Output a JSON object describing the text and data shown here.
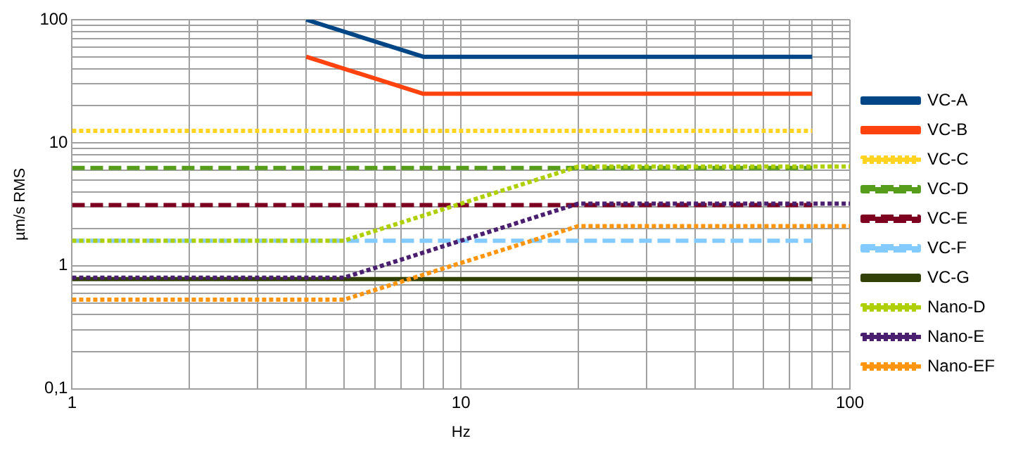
{
  "chart_data": {
    "type": "line",
    "xlabel": "Hz",
    "ylabel": "µm/s RMS",
    "log": "xy",
    "grid": true,
    "legend": "right",
    "marker": "none",
    "xlim": [
      1,
      100
    ],
    "ylim": [
      0.1,
      100
    ],
    "xticks": [
      1,
      {
        "value": 2,
        "label": null
      },
      {
        "value": 3,
        "label": null
      },
      {
        "value": 4,
        "label": null
      },
      {
        "value": 5,
        "label": null
      },
      {
        "value": 6,
        "label": null
      },
      {
        "value": 7,
        "label": null
      },
      {
        "value": 8,
        "label": null
      },
      {
        "value": 9,
        "label": null
      },
      10,
      {
        "value": 20,
        "label": null
      },
      {
        "value": 30,
        "label": null
      },
      {
        "value": 40,
        "label": null
      },
      {
        "value": 50,
        "label": null
      },
      {
        "value": 60,
        "label": null
      },
      {
        "value": 70,
        "label": null
      },
      {
        "value": 80,
        "label": null
      },
      {
        "value": 90,
        "label": null
      },
      100
    ],
    "yticks": [
      {
        "value": 0.1,
        "label": "0,1"
      },
      {
        "value": 0.2,
        "label": null
      },
      {
        "value": 0.3,
        "label": null
      },
      {
        "value": 0.4,
        "label": null
      },
      {
        "value": 0.5,
        "label": null
      },
      {
        "value": 0.6,
        "label": null
      },
      {
        "value": 0.7,
        "label": null
      },
      {
        "value": 0.8,
        "label": null
      },
      {
        "value": 0.9,
        "label": null
      },
      1,
      {
        "value": 2,
        "label": null
      },
      {
        "value": 3,
        "label": null
      },
      {
        "value": 4,
        "label": null
      },
      {
        "value": 5,
        "label": null
      },
      {
        "value": 6,
        "label": null
      },
      {
        "value": 7,
        "label": null
      },
      {
        "value": 8,
        "label": null
      },
      {
        "value": 9,
        "label": null
      },
      10,
      {
        "value": 20,
        "label": null
      },
      {
        "value": 30,
        "label": null
      },
      {
        "value": 40,
        "label": null
      },
      {
        "value": 50,
        "label": null
      },
      {
        "value": 60,
        "label": null
      },
      {
        "value": 70,
        "label": null
      },
      {
        "value": 80,
        "label": null
      },
      {
        "value": 90,
        "label": null
      },
      100
    ],
    "series": [
      {
        "name": "VC-A",
        "color": "#004586",
        "line_style": "solid",
        "x": [
          4,
          8,
          80
        ],
        "values": [
          100,
          50,
          50
        ]
      },
      {
        "name": "VC-B",
        "color": "#ff420e",
        "line_style": "solid",
        "x": [
          4,
          8,
          80
        ],
        "values": [
          50,
          25,
          25
        ]
      },
      {
        "name": "VC-C",
        "color": "#ffd320",
        "line_style": "dotted",
        "x": [
          1,
          80
        ],
        "values": [
          12.5,
          12.5
        ]
      },
      {
        "name": "VC-D",
        "color": "#579d1c",
        "line_style": "dashed",
        "x": [
          1,
          80
        ],
        "values": [
          6.25,
          6.25
        ]
      },
      {
        "name": "VC-E",
        "color": "#7e0021",
        "line_style": "dashed",
        "x": [
          1,
          80
        ],
        "values": [
          3.12,
          3.12
        ]
      },
      {
        "name": "VC-F",
        "color": "#83caff",
        "line_style": "dashed",
        "x": [
          1,
          80
        ],
        "values": [
          1.6,
          1.6
        ]
      },
      {
        "name": "VC-G",
        "color": "#314004",
        "line_style": "solid",
        "x": [
          1,
          80
        ],
        "values": [
          0.78,
          0.78
        ]
      },
      {
        "name": "Nano-D",
        "color": "#aecf00",
        "line_style": "dotted",
        "x": [
          1,
          5,
          20,
          100
        ],
        "values": [
          1.6,
          1.6,
          6.4,
          6.4
        ]
      },
      {
        "name": "Nano-E",
        "color": "#4b1f6f",
        "line_style": "dotted",
        "x": [
          1,
          5,
          20,
          100
        ],
        "values": [
          0.8,
          0.8,
          3.2,
          3.2
        ]
      },
      {
        "name": "Nano-EF",
        "color": "#ff950e",
        "line_style": "dotted",
        "x": [
          1,
          5,
          20,
          100
        ],
        "values": [
          0.53,
          0.53,
          2.1,
          2.1
        ]
      }
    ]
  }
}
